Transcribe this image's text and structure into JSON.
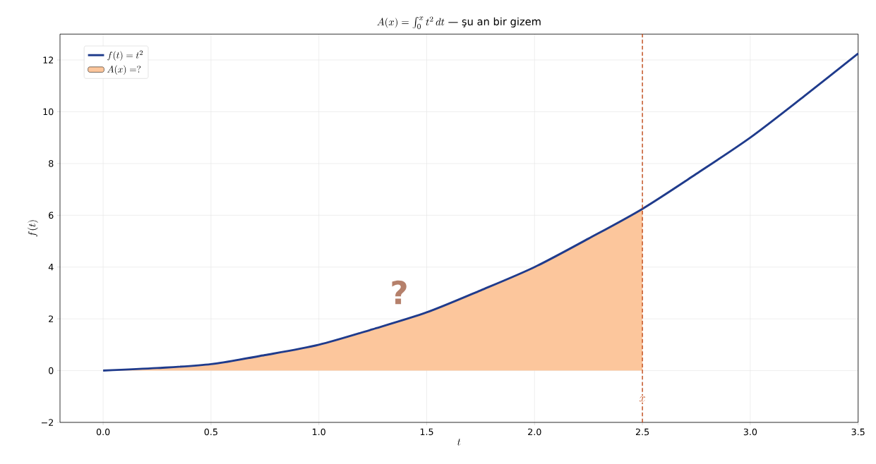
{
  "chart_data": {
    "type": "line",
    "title": "A(x) = \\int_0^x t^2\\, dt \\text{ — şu an bir gizem}",
    "xlabel": "t",
    "ylabel": "f(t)",
    "series": [
      {
        "name": "f(t) = t^2",
        "color": "#1f3b8c",
        "x": [
          0,
          0.25,
          0.5,
          0.75,
          1,
          1.25,
          1.5,
          1.75,
          2,
          2.25,
          2.5,
          2.75,
          3,
          3.25,
          3.5
        ],
        "values": [
          0,
          0.1,
          0.25,
          0.6,
          1,
          1.6,
          2.25,
          3.1,
          4,
          5.1,
          6.25,
          7.6,
          9,
          10.6,
          12.25
        ]
      },
      {
        "name": "A(x) = ?",
        "type": "area",
        "color": "#fcc69c",
        "x": [
          0,
          0.25,
          0.5,
          0.75,
          1,
          1.25,
          1.5,
          1.75,
          2,
          2.25,
          2.5
        ],
        "values": [
          0,
          0.1,
          0.25,
          0.6,
          1,
          1.6,
          2.25,
          3.1,
          4,
          5.1,
          6.25
        ]
      }
    ],
    "ref_lines": [
      {
        "axis": "x",
        "value": 2.5,
        "label": "x",
        "color": "#c0430f",
        "line_style": "dashed"
      }
    ],
    "annotations": [
      "?"
    ],
    "xlim": [
      -0.2,
      3.5
    ],
    "ylim": [
      -2,
      13
    ],
    "xticks": [
      {
        "value": 0,
        "label": "0.0"
      },
      {
        "value": 0.5,
        "label": "0.5"
      },
      {
        "value": 1,
        "label": "1.0"
      },
      {
        "value": 1.5,
        "label": "1.5"
      },
      {
        "value": 2,
        "label": "2.0"
      },
      {
        "value": 2.5,
        "label": "2.5"
      },
      {
        "value": 3,
        "label": "3.0"
      },
      {
        "value": 3.5,
        "label": "3.5"
      }
    ],
    "yticks": [
      {
        "value": -2,
        "label": "−2"
      },
      0,
      2,
      4,
      6,
      8,
      10,
      12
    ],
    "grid": true,
    "legend": "top left"
  }
}
